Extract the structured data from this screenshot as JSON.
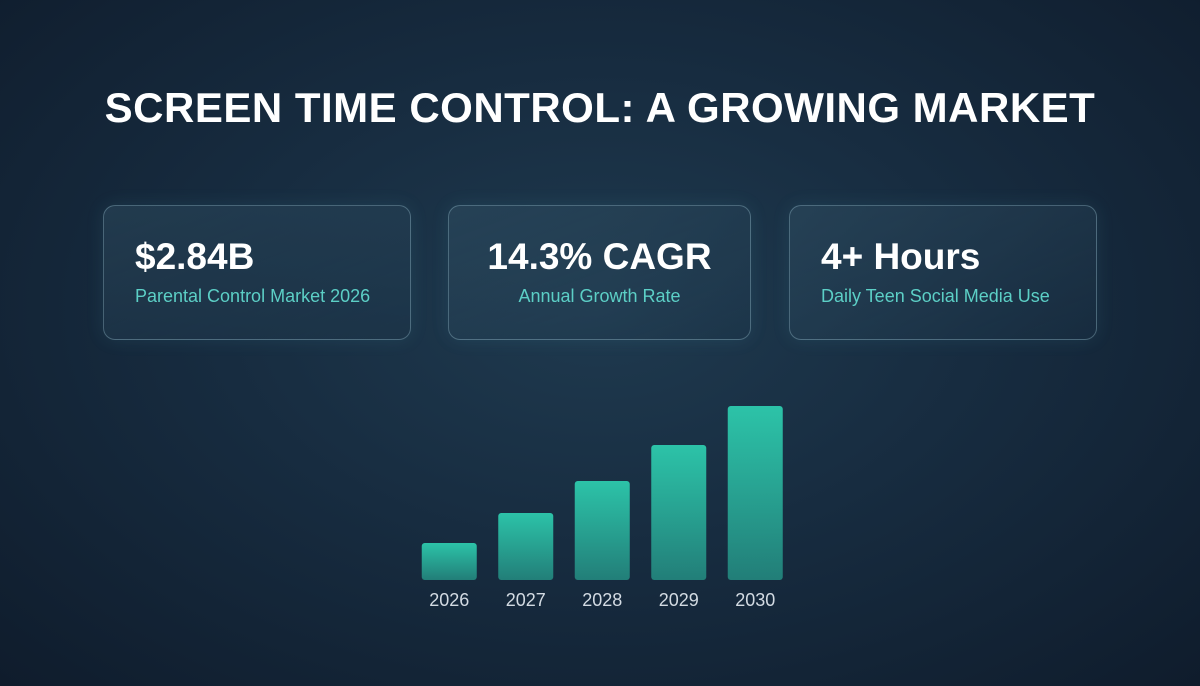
{
  "title": "SCREEN TIME CONTROL: A GROWING MARKET",
  "cards": [
    {
      "value": "$2.84B",
      "label": "Parental Control Market 2026"
    },
    {
      "value": "14.3% CAGR",
      "label": "Annual Growth Rate"
    },
    {
      "value": "4+ Hours",
      "label": "Daily Teen Social Media Use"
    }
  ],
  "chart_data": {
    "type": "bar",
    "categories": [
      "2026",
      "2027",
      "2028",
      "2029",
      "2030"
    ],
    "values": [
      37,
      67,
      99,
      135,
      174
    ],
    "ylim": [
      0,
      180
    ],
    "color": "#2cc3a8"
  }
}
